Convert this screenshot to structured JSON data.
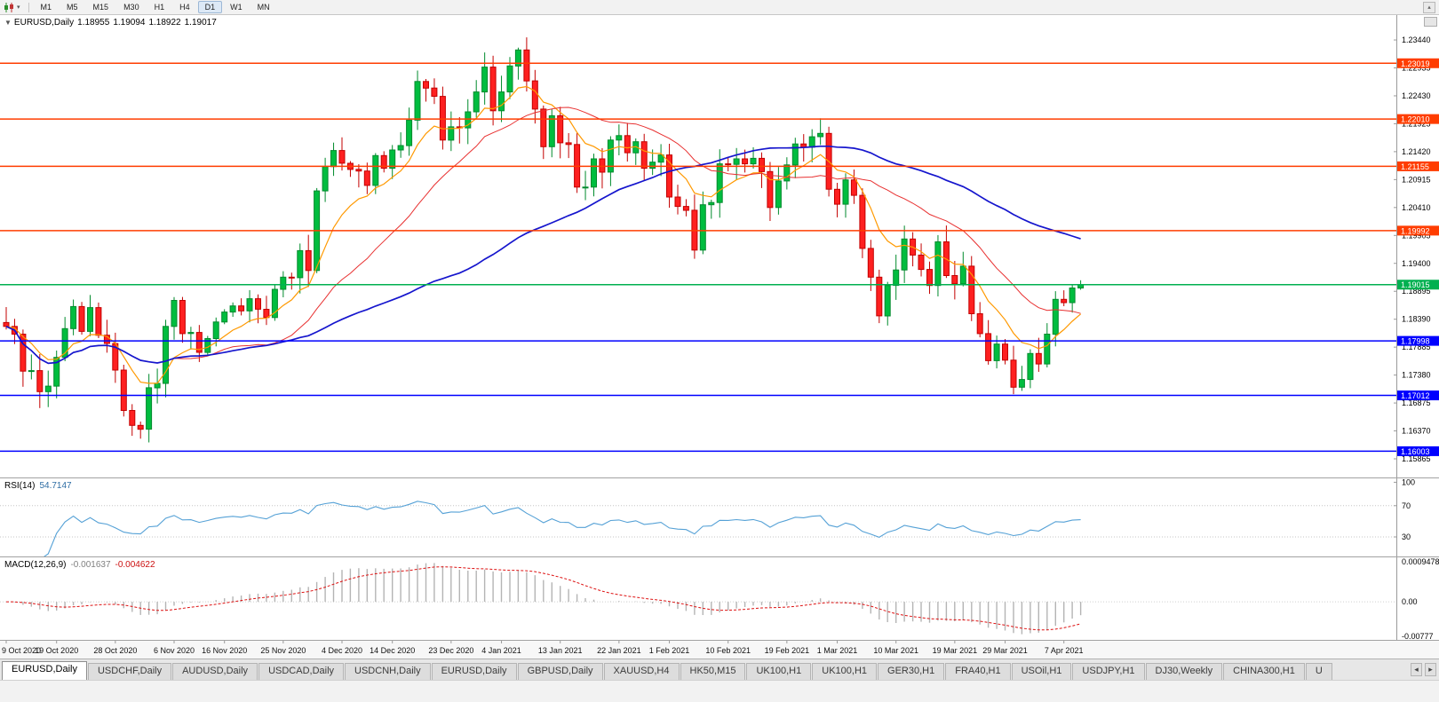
{
  "icons": {
    "collapse": "▼",
    "caret_down": "▾",
    "caret_up": "▴",
    "tab_left": "◂",
    "tab_right": "▸"
  },
  "toolbar": {
    "timeframes": [
      "M1",
      "M5",
      "M15",
      "M30",
      "H1",
      "H4",
      "D1",
      "W1",
      "MN"
    ],
    "active_timeframe": "D1"
  },
  "chart": {
    "title": {
      "symbol_period": "EURUSD,Daily",
      "open": "1.18955",
      "high": "1.19094",
      "low": "1.18922",
      "close": "1.19017"
    },
    "price_axis_labels": [
      "1.23440",
      "1.22935",
      "1.22430",
      "1.21925",
      "1.21420",
      "1.20915",
      "1.20410",
      "1.19905",
      "1.19400",
      "1.18895",
      "1.18390",
      "1.17885",
      "1.17380",
      "1.16875",
      "1.16370",
      "1.15865"
    ],
    "levels": [
      {
        "price": 1.23019,
        "label": "1.23019",
        "color": "#ff3d00"
      },
      {
        "price": 1.2201,
        "label": "1.22010",
        "color": "#ff3d00"
      },
      {
        "price": 1.21155,
        "label": "1.21155",
        "color": "#ff3d00"
      },
      {
        "price": 1.19992,
        "label": "1.19992",
        "color": "#ff3d00"
      },
      {
        "price": 1.19015,
        "label": "1.19015",
        "color": "#00b050"
      },
      {
        "price": 1.17998,
        "label": "1.17998",
        "color": "#0000ff"
      },
      {
        "price": 1.17012,
        "label": "1.17012",
        "color": "#0000ff"
      },
      {
        "price": 1.16003,
        "label": "1.16003",
        "color": "#0000ff"
      }
    ]
  },
  "chart_data": {
    "type": "candlestick",
    "symbol": "EURUSD",
    "period": "Daily",
    "y_render_range": [
      1.15528,
      1.2389
    ],
    "up_color": "#00bd3f",
    "up_border": "#008a2c",
    "down_color": "#fe2020",
    "down_border": "#c30000",
    "first_open": 1.1833,
    "last_candle": {
      "open": 1.18955,
      "high": 1.19094,
      "low": 1.18922,
      "close": 1.19017
    },
    "closes": [
      1.1826,
      1.1812,
      1.1745,
      1.1746,
      1.1708,
      1.1718,
      1.177,
      1.1822,
      1.1862,
      1.1817,
      1.186,
      1.181,
      1.1795,
      1.1747,
      1.1674,
      1.1647,
      1.164,
      1.1715,
      1.1723,
      1.1826,
      1.1873,
      1.1813,
      1.1815,
      1.1779,
      1.1804,
      1.1834,
      1.1852,
      1.1863,
      1.1854,
      1.1876,
      1.1857,
      1.1842,
      1.1893,
      1.1915,
      1.1914,
      1.1963,
      1.1927,
      1.2071,
      1.2115,
      1.2144,
      1.2121,
      1.211,
      1.2107,
      1.2081,
      1.2135,
      1.2112,
      1.2145,
      1.2153,
      1.2199,
      1.2269,
      1.2257,
      1.2242,
      1.2163,
      1.2187,
      1.2185,
      1.2214,
      1.225,
      1.2295,
      1.2216,
      1.225,
      1.2297,
      1.2326,
      1.227,
      1.2219,
      1.2151,
      1.2207,
      1.2158,
      1.2155,
      1.2078,
      1.2078,
      1.2129,
      1.2105,
      1.2163,
      1.2171,
      1.214,
      1.216,
      1.2112,
      1.2123,
      1.2136,
      1.206,
      1.2043,
      1.2036,
      1.1964,
      1.2046,
      1.205,
      1.212,
      1.2119,
      1.2129,
      1.212,
      1.213,
      1.2106,
      1.2041,
      1.2089,
      1.2118,
      1.2156,
      1.215,
      1.2169,
      1.2175,
      1.2074,
      1.2047,
      1.2091,
      1.2063,
      1.1967,
      1.1915,
      1.1845,
      1.19,
      1.1928,
      1.1984,
      1.1955,
      1.1929,
      1.19,
      1.1979,
      1.1918,
      1.1903,
      1.1935,
      1.1849,
      1.1813,
      1.1764,
      1.1794,
      1.1765,
      1.1716,
      1.173,
      1.1777,
      1.1758,
      1.1812,
      1.1875,
      1.1869,
      1.18955,
      1.19017
    ],
    "x_labels": [
      {
        "i": 0,
        "label": "9 Oct 2020"
      },
      {
        "i": 6,
        "label": "19 Oct 2020"
      },
      {
        "i": 13,
        "label": "28 Oct 2020"
      },
      {
        "i": 20,
        "label": "6 Nov 2020"
      },
      {
        "i": 26,
        "label": "16 Nov 2020"
      },
      {
        "i": 33,
        "label": "25 Nov 2020"
      },
      {
        "i": 40,
        "label": "4 Dec 2020"
      },
      {
        "i": 46,
        "label": "14 Dec 2020"
      },
      {
        "i": 53,
        "label": "23 Dec 2020"
      },
      {
        "i": 59,
        "label": "4 Jan 2021"
      },
      {
        "i": 66,
        "label": "13 Jan 2021"
      },
      {
        "i": 73,
        "label": "22 Jan 2021"
      },
      {
        "i": 79,
        "label": "1 Feb 2021"
      },
      {
        "i": 86,
        "label": "10 Feb 2021"
      },
      {
        "i": 93,
        "label": "19 Feb 2021"
      },
      {
        "i": 99,
        "label": "1 Mar 2021"
      },
      {
        "i": 106,
        "label": "10 Mar 2021"
      },
      {
        "i": 113,
        "label": "19 Mar 2021"
      },
      {
        "i": 119,
        "label": "29 Mar 2021"
      },
      {
        "i": 126,
        "label": "7 Apr 2021"
      }
    ],
    "moving_averages": [
      {
        "period": 9,
        "type": "ema",
        "color": "#ff9900",
        "width": 1.2
      },
      {
        "period": 21,
        "type": "sma",
        "color": "#e83030",
        "width": 1
      },
      {
        "period": 55,
        "type": "sma",
        "color": "#1515cd",
        "width": 1.7
      }
    ]
  },
  "rsi": {
    "label": "RSI(14)",
    "value": "54.7147",
    "axis_labels": [
      "100",
      "70",
      "30"
    ],
    "levels": [
      70,
      30
    ],
    "line_color": "#55a1d6",
    "range": [
      5,
      105
    ]
  },
  "macd": {
    "label": "MACD(12,26,9)",
    "main_value": "-0.001637",
    "signal_value": "-0.004622",
    "axis_top": "0.0009478",
    "axis_zero": "0.00",
    "axis_bottom": "-0.00777",
    "hist_color": "#b4b4b4",
    "signal_color": "#dd1111"
  },
  "tabbar": {
    "active_index": 0,
    "tabs": [
      "EURUSD,Daily",
      "USDCHF,Daily",
      "AUDUSD,Daily",
      "USDCAD,Daily",
      "USDCNH,Daily",
      "EURUSD,Daily",
      "GBPUSD,Daily",
      "XAUUSD,H4",
      "HK50,M15",
      "UK100,H1",
      "UK100,H1",
      "GER30,H1",
      "FRA40,H1",
      "USOil,H1",
      "USDJPY,H1",
      "DJ30,Weekly",
      "CHINA300,H1",
      "U"
    ]
  }
}
